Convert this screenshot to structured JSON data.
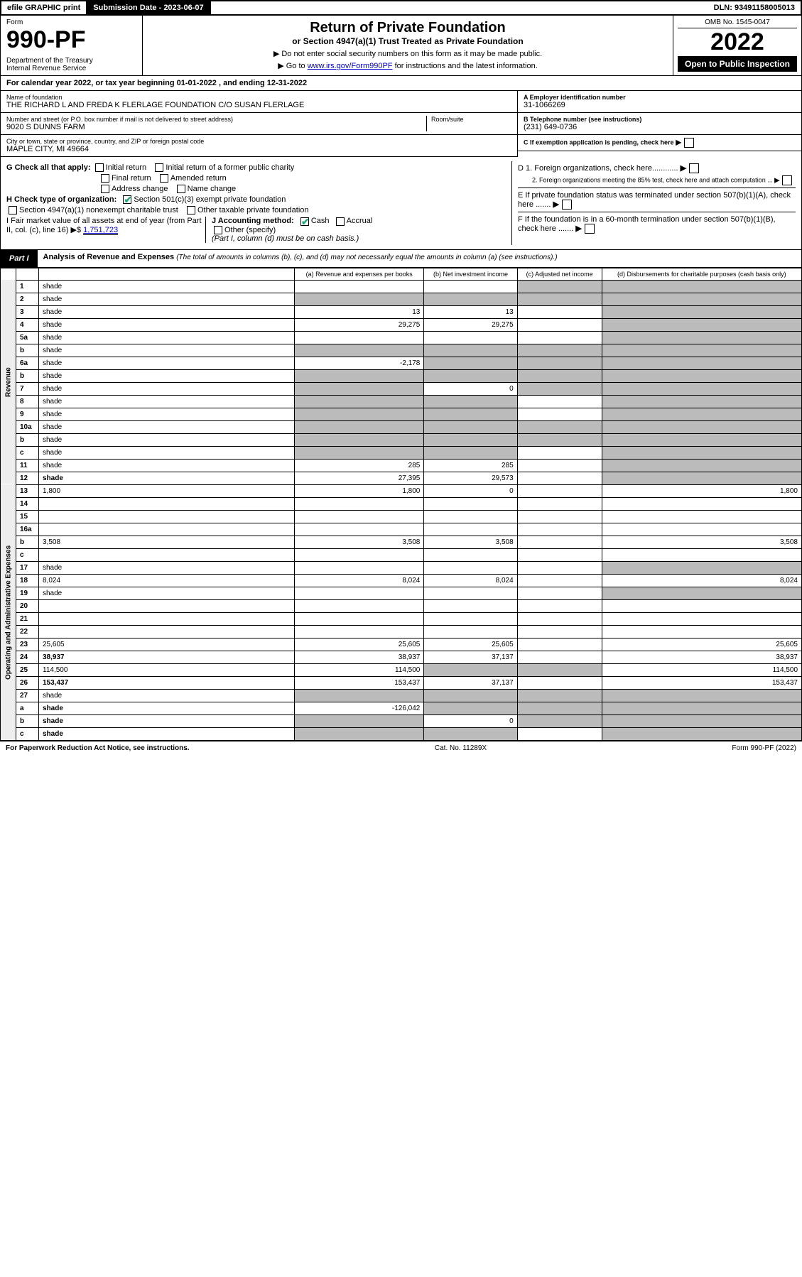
{
  "topbar": {
    "efile": "efile GRAPHIC print",
    "subdate_label": "Submission Date - 2023-06-07",
    "dln": "DLN: 93491158005013"
  },
  "header": {
    "form_label": "Form",
    "form_no": "990-PF",
    "dept": "Department of the Treasury\nInternal Revenue Service",
    "title": "Return of Private Foundation",
    "subtitle": "or Section 4947(a)(1) Trust Treated as Private Foundation",
    "note1": "▶ Do not enter social security numbers on this form as it may be made public.",
    "note2_pre": "▶ Go to ",
    "note2_link": "www.irs.gov/Form990PF",
    "note2_post": " for instructions and the latest information.",
    "omb": "OMB No. 1545-0047",
    "year": "2022",
    "open": "Open to Public Inspection"
  },
  "cal": "For calendar year 2022, or tax year beginning 01-01-2022         , and ending 12-31-2022",
  "id": {
    "name_lbl": "Name of foundation",
    "name": "THE RICHARD L AND FREDA K FLERLAGE FOUNDATION C/O SUSAN FLERLAGE",
    "addr_lbl": "Number and street (or P.O. box number if mail is not delivered to street address)",
    "addr": "9020 S DUNNS FARM",
    "room_lbl": "Room/suite",
    "city_lbl": "City or town, state or province, country, and ZIP or foreign postal code",
    "city": "MAPLE CITY, MI  49664",
    "ein_lbl": "A Employer identification number",
    "ein": "31-1066269",
    "tel_lbl": "B Telephone number (see instructions)",
    "tel": "(231) 649-0736",
    "c_lbl": "C If exemption application is pending, check here",
    "d1": "D 1. Foreign organizations, check here............",
    "d2": "2. Foreign organizations meeting the 85% test, check here and attach computation ...",
    "e": "E  If private foundation status was terminated under section 507(b)(1)(A), check here .......",
    "f": "F  If the foundation is in a 60-month termination under section 507(b)(1)(B), check here .......",
    "g_lbl": "G Check all that apply:",
    "g_opts": [
      "Initial return",
      "Initial return of a former public charity",
      "Final return",
      "Amended return",
      "Address change",
      "Name change"
    ],
    "h_lbl": "H Check type of organization:",
    "h_opts": [
      "Section 501(c)(3) exempt private foundation",
      "Section 4947(a)(1) nonexempt charitable trust",
      "Other taxable private foundation"
    ],
    "i_lbl": "I Fair market value of all assets at end of year (from Part II, col. (c), line 16) ▶$",
    "i_val": "1,751,723",
    "j_lbl": "J Accounting method:",
    "j_cash": "Cash",
    "j_accrual": "Accrual",
    "j_other": "Other (specify)",
    "j_note": "(Part I, column (d) must be on cash basis.)"
  },
  "part1": {
    "tag": "Part I",
    "title": "Analysis of Revenue and Expenses",
    "sub": "(The total of amounts in columns (b), (c), and (d) may not necessarily equal the amounts in column (a) (see instructions).)",
    "cols": {
      "a": "(a) Revenue and expenses per books",
      "b": "(b) Net investment income",
      "c": "(c) Adjusted net income",
      "d": "(d) Disbursements for charitable purposes (cash basis only)"
    }
  },
  "sections": {
    "rev": "Revenue",
    "exp": "Operating and Administrative Expenses"
  },
  "rows": [
    {
      "n": "1",
      "d": "shade",
      "a": "",
      "b": "",
      "c": "shade"
    },
    {
      "n": "2",
      "d": "shade",
      "a": "shade",
      "b": "shade",
      "c": "shade",
      "bold": false
    },
    {
      "n": "3",
      "d": "shade",
      "a": "13",
      "b": "13",
      "c": ""
    },
    {
      "n": "4",
      "d": "shade",
      "a": "29,275",
      "b": "29,275",
      "c": ""
    },
    {
      "n": "5a",
      "d": "shade",
      "a": "",
      "b": "",
      "c": ""
    },
    {
      "n": "b",
      "d": "shade",
      "a": "shade",
      "b": "shade",
      "c": "shade"
    },
    {
      "n": "6a",
      "d": "shade",
      "a": "-2,178",
      "b": "shade",
      "c": "shade"
    },
    {
      "n": "b",
      "d": "shade",
      "a": "shade",
      "b": "shade",
      "c": "shade"
    },
    {
      "n": "7",
      "d": "shade",
      "a": "shade",
      "b": "0",
      "c": "shade"
    },
    {
      "n": "8",
      "d": "shade",
      "a": "shade",
      "b": "shade",
      "c": ""
    },
    {
      "n": "9",
      "d": "shade",
      "a": "shade",
      "b": "shade",
      "c": ""
    },
    {
      "n": "10a",
      "d": "shade",
      "a": "shade",
      "b": "shade",
      "c": "shade"
    },
    {
      "n": "b",
      "d": "shade",
      "a": "shade",
      "b": "shade",
      "c": "shade"
    },
    {
      "n": "c",
      "d": "shade",
      "a": "shade",
      "b": "shade",
      "c": ""
    },
    {
      "n": "11",
      "d": "shade",
      "a": "285",
      "b": "285",
      "c": ""
    },
    {
      "n": "12",
      "d": "shade",
      "a": "27,395",
      "b": "29,573",
      "c": "",
      "bold": true
    },
    {
      "n": "13",
      "d": "1,800",
      "a": "1,800",
      "b": "0",
      "c": ""
    },
    {
      "n": "14",
      "d": "",
      "a": "",
      "b": "",
      "c": ""
    },
    {
      "n": "15",
      "d": "",
      "a": "",
      "b": "",
      "c": ""
    },
    {
      "n": "16a",
      "d": "",
      "a": "",
      "b": "",
      "c": ""
    },
    {
      "n": "b",
      "d": "3,508",
      "a": "3,508",
      "b": "3,508",
      "c": ""
    },
    {
      "n": "c",
      "d": "",
      "a": "",
      "b": "",
      "c": ""
    },
    {
      "n": "17",
      "d": "shade",
      "a": "",
      "b": "",
      "c": ""
    },
    {
      "n": "18",
      "d": "8,024",
      "a": "8,024",
      "b": "8,024",
      "c": ""
    },
    {
      "n": "19",
      "d": "shade",
      "a": "",
      "b": "",
      "c": ""
    },
    {
      "n": "20",
      "d": "",
      "a": "",
      "b": "",
      "c": ""
    },
    {
      "n": "21",
      "d": "",
      "a": "",
      "b": "",
      "c": ""
    },
    {
      "n": "22",
      "d": "",
      "a": "",
      "b": "",
      "c": ""
    },
    {
      "n": "23",
      "d": "25,605",
      "a": "25,605",
      "b": "25,605",
      "c": ""
    },
    {
      "n": "24",
      "d": "38,937",
      "a": "38,937",
      "b": "37,137",
      "c": "",
      "bold": true
    },
    {
      "n": "25",
      "d": "114,500",
      "a": "114,500",
      "b": "shade",
      "c": "shade"
    },
    {
      "n": "26",
      "d": "153,437",
      "a": "153,437",
      "b": "37,137",
      "c": "",
      "bold": true
    },
    {
      "n": "27",
      "d": "shade",
      "a": "shade",
      "b": "shade",
      "c": "shade"
    },
    {
      "n": "a",
      "d": "shade",
      "a": "-126,042",
      "b": "shade",
      "c": "shade",
      "bold": true
    },
    {
      "n": "b",
      "d": "shade",
      "a": "shade",
      "b": "0",
      "c": "shade",
      "bold": true
    },
    {
      "n": "c",
      "d": "shade",
      "a": "shade",
      "b": "shade",
      "c": "",
      "bold": true
    }
  ],
  "footer": {
    "l": "For Paperwork Reduction Act Notice, see instructions.",
    "c": "Cat. No. 11289X",
    "r": "Form 990-PF (2022)"
  },
  "colors": {
    "border": "#000000",
    "shade": "#bbbbbb",
    "link": "#0000cc",
    "check": "#22aa77"
  }
}
